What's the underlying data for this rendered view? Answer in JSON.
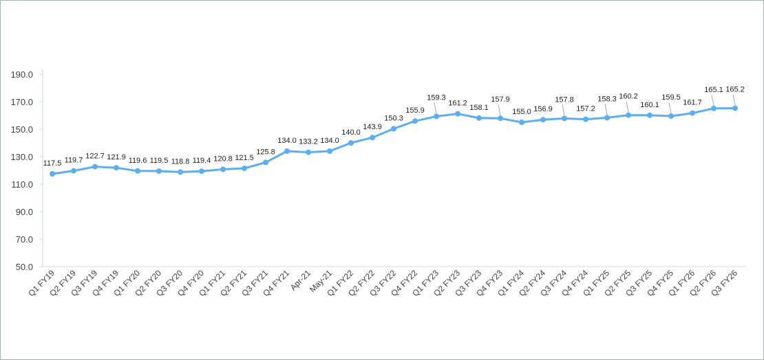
{
  "chart_data": {
    "type": "line",
    "title": "",
    "xlabel": "",
    "ylabel": "",
    "ylim": [
      50,
      190
    ],
    "yticks": [
      "50.0",
      "70.0",
      "90.0",
      "110.0",
      "130.0",
      "150.0",
      "170.0",
      "190.0"
    ],
    "grid": false,
    "line_color": "#5aaef5",
    "categories": [
      "Q1 FY19",
      "Q2 FY19",
      "Q3 FY19",
      "Q4 FY19",
      "Q1 FY20",
      "Q2 FY20",
      "Q3 FY20",
      "Q4 FY20",
      "Q1 FY21",
      "Q2 FY21",
      "Q3 FY21",
      "Q4 FY21",
      "Apr-21",
      "May-21",
      "Q1 FY22",
      "Q2 FY22",
      "Q3 FY22",
      "Q4 FY22",
      "Q1 FY23",
      "Q2 FY23",
      "Q3 FY23",
      "Q4 FY23",
      "Q1 FY24",
      "Q2 FY24",
      "Q3 FY24",
      "Q4 FY24",
      "Q1 FY25",
      "Q2 FY25",
      "Q3 FY25",
      "Q4 FY25",
      "Q1 FY26",
      "Q2 FY26",
      "Q3 FY26"
    ],
    "series": [
      {
        "values": [
          117.5,
          119.7,
          122.7,
          121.9,
          119.6,
          119.5,
          118.8,
          119.4,
          120.8,
          121.5,
          125.8,
          134.0,
          133.2,
          134.0,
          140.0,
          143.9,
          150.3,
          155.9,
          159.3,
          161.2,
          158.1,
          157.9,
          155.0,
          156.9,
          157.8,
          157.2,
          158.3,
          160.2,
          160.1,
          159.5,
          161.7,
          165.1,
          165.2
        ],
        "labels": [
          "117.5",
          "119.7",
          "122.7",
          "121.9",
          "119.6",
          "119.5",
          "118.8",
          "119.4",
          "120.8",
          "121.5",
          "125.8",
          "134.0",
          "133.2",
          "134.0",
          "140.0",
          "143.9",
          "150.3",
          "155.9",
          "159.3",
          "161.2",
          "158.1",
          "157.9",
          "155.0",
          "156.9",
          "157.8",
          "157.2",
          "158.3",
          "160.2",
          "160.1",
          "159.5",
          "161.7",
          "165.1",
          "165.2"
        ]
      }
    ]
  }
}
